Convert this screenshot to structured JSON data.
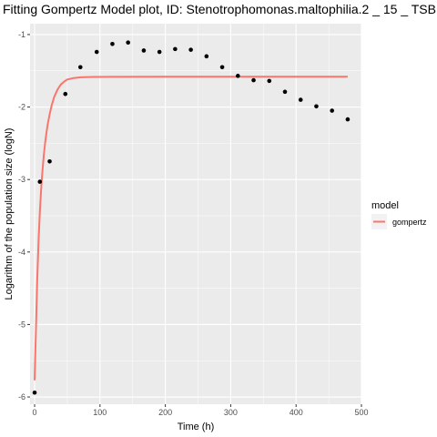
{
  "chart_data": {
    "type": "scatter",
    "title": "Fitting Gompertz Model plot, ID: Stenotrophomonas.maltophilia.2 _ 15 _ TSB",
    "xlabel": "Time (h)",
    "ylabel": "Logarithm of the population size (logN)",
    "xlim": [
      -7,
      500
    ],
    "ylim": [
      -6.1,
      -0.85
    ],
    "xticks": [
      0,
      100,
      200,
      300,
      400,
      500
    ],
    "xtick_labels": [
      "0",
      "100",
      "200",
      "300",
      "400",
      "500"
    ],
    "yticks": [
      -6,
      -5,
      -4,
      -3,
      -2,
      -1
    ],
    "ytick_labels": [
      "-6",
      "-5",
      "-4",
      "-3",
      "-2",
      "-1"
    ],
    "grid": true,
    "legend_position": "right",
    "legend_title": "model",
    "points": {
      "color": "#000000",
      "x": [
        0,
        8,
        23,
        47,
        70,
        95,
        119,
        143,
        167,
        191,
        215,
        239,
        263,
        287,
        311,
        335,
        359,
        383,
        407,
        431,
        455,
        479
      ],
      "y": [
        -5.94,
        -3.03,
        -2.75,
        -1.82,
        -1.45,
        -1.24,
        -1.13,
        -1.11,
        -1.22,
        -1.24,
        -1.2,
        -1.21,
        -1.3,
        -1.45,
        -1.57,
        -1.63,
        -1.64,
        -1.79,
        -1.9,
        -1.99,
        -2.05,
        -2.17
      ]
    },
    "series": [
      {
        "name": "gompertz",
        "color": "#F8766D",
        "x": [
          0,
          2,
          4,
          6,
          8,
          10,
          12,
          14,
          16,
          18,
          20,
          23,
          26,
          30,
          35,
          40,
          45,
          50,
          60,
          70,
          90,
          120,
          200,
          300,
          400,
          479
        ],
        "y": [
          -5.77,
          -5.08,
          -4.38,
          -3.85,
          -3.45,
          -3.13,
          -2.88,
          -2.67,
          -2.5,
          -2.36,
          -2.24,
          -2.1,
          -1.98,
          -1.86,
          -1.76,
          -1.69,
          -1.65,
          -1.62,
          -1.6,
          -1.59,
          -1.585,
          -1.583,
          -1.582,
          -1.582,
          -1.582,
          -1.582
        ]
      }
    ]
  }
}
